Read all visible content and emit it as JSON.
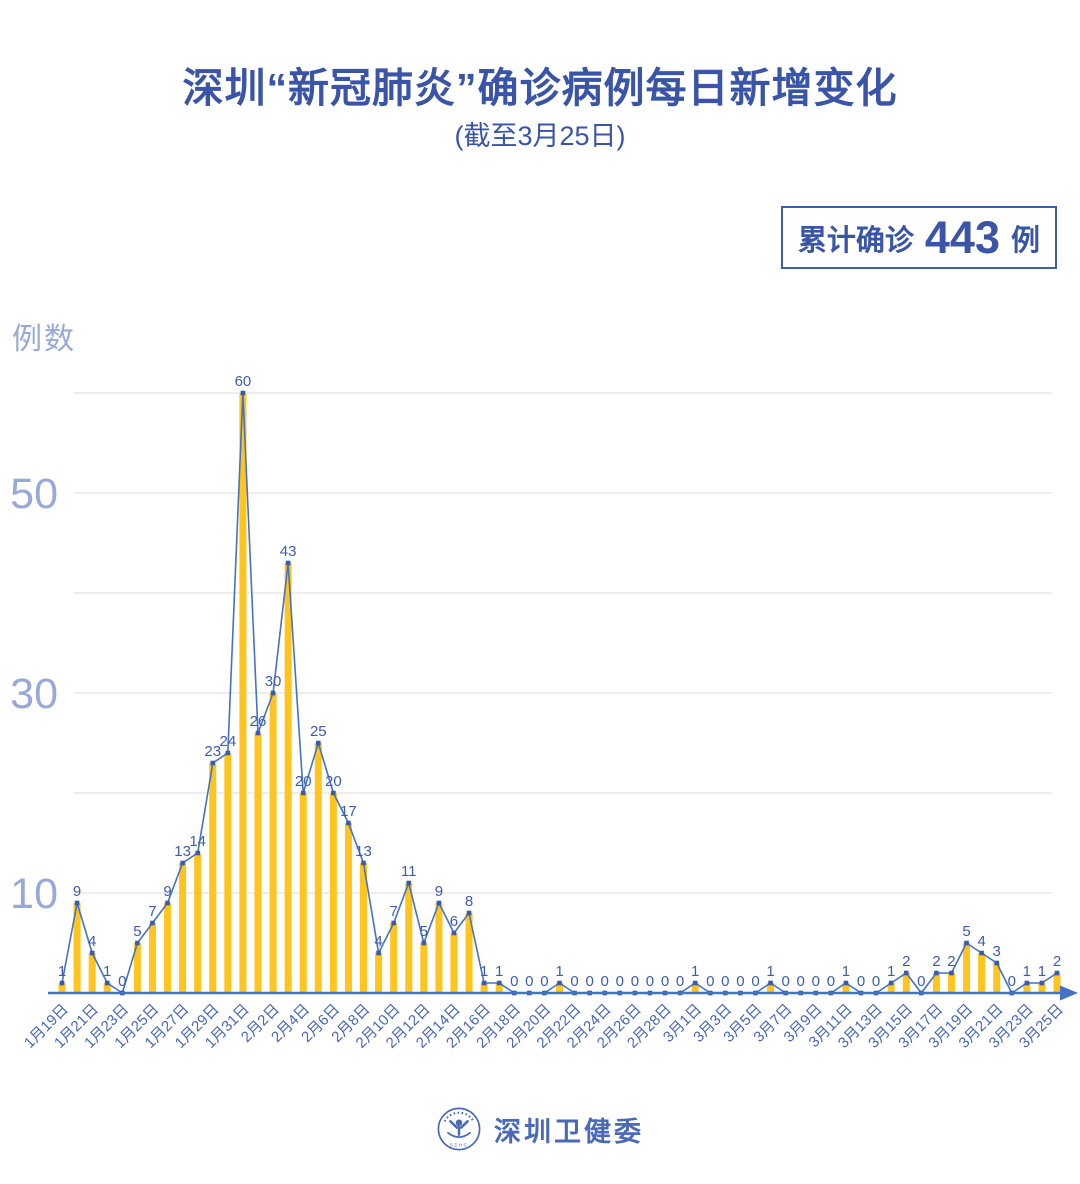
{
  "header": {
    "title": "深圳“新冠肺炎”确诊病例每日新增变化",
    "subtitle": "(截至3月25日)",
    "badge": {
      "prefix": "累计确诊",
      "value": "443",
      "suffix": "例"
    }
  },
  "chart_data": {
    "type": "bar",
    "subtype": "bar-with-line-overlay",
    "title": "深圳“新冠肺炎”确诊病例每日新增变化",
    "subtitle": "(截至3月25日)",
    "ylabel": "例数",
    "xlabel": "",
    "ylim": [
      0,
      60
    ],
    "gridline_values": [
      10,
      20,
      30,
      40,
      50,
      60
    ],
    "y_ticks_labeled": [
      10,
      30,
      50
    ],
    "x_tick_every": 2,
    "legend": "none",
    "grid": "horizontal-only",
    "categories": [
      "1月19日",
      "1月20日",
      "1月21日",
      "1月22日",
      "1月23日",
      "1月24日",
      "1月25日",
      "1月26日",
      "1月27日",
      "1月28日",
      "1月29日",
      "1月30日",
      "1月31日",
      "2月1日",
      "2月2日",
      "2月3日",
      "2月4日",
      "2月5日",
      "2月6日",
      "2月7日",
      "2月8日",
      "2月9日",
      "2月10日",
      "2月11日",
      "2月12日",
      "2月13日",
      "2月14日",
      "2月15日",
      "2月16日",
      "2月17日",
      "2月18日",
      "2月19日",
      "2月20日",
      "2月21日",
      "2月22日",
      "2月23日",
      "2月24日",
      "2月25日",
      "2月26日",
      "2月27日",
      "2月28日",
      "2月29日",
      "3月1日",
      "3月2日",
      "3月3日",
      "3月4日",
      "3月5日",
      "3月6日",
      "3月7日",
      "3月8日",
      "3月9日",
      "3月10日",
      "3月11日",
      "3月12日",
      "3月13日",
      "3月14日",
      "3月15日",
      "3月16日",
      "3月17日",
      "3月18日",
      "3月19日",
      "3月20日",
      "3月21日",
      "3月22日",
      "3月23日",
      "3月24日",
      "3月25日"
    ],
    "values": [
      1,
      9,
      4,
      1,
      0,
      5,
      7,
      9,
      13,
      14,
      23,
      24,
      60,
      26,
      30,
      43,
      20,
      25,
      20,
      17,
      13,
      4,
      7,
      11,
      5,
      9,
      6,
      8,
      1,
      1,
      0,
      0,
      0,
      1,
      0,
      0,
      0,
      0,
      0,
      0,
      0,
      0,
      1,
      0,
      0,
      0,
      0,
      1,
      0,
      0,
      0,
      0,
      1,
      0,
      0,
      1,
      2,
      0,
      2,
      2,
      5,
      4,
      3,
      0,
      1,
      1,
      2
    ],
    "total": 443,
    "colors": {
      "title": "#3A55A8",
      "bar": "#FFC41D",
      "line": "#4472C4",
      "marker": "#3A5BA9",
      "value_label": "#3D5DAB",
      "grid": "#E4E4E4",
      "axis": "#4472C4",
      "y_tick": "#98A9D8",
      "x_tick": "#4767B4",
      "badge_border": "#3D5DAB",
      "footer": "#4A69B8"
    }
  },
  "footer": {
    "text": "深圳卫健委",
    "logo": "shenzhen-health-commission-emblem",
    "logo_letters": "SZHC"
  }
}
